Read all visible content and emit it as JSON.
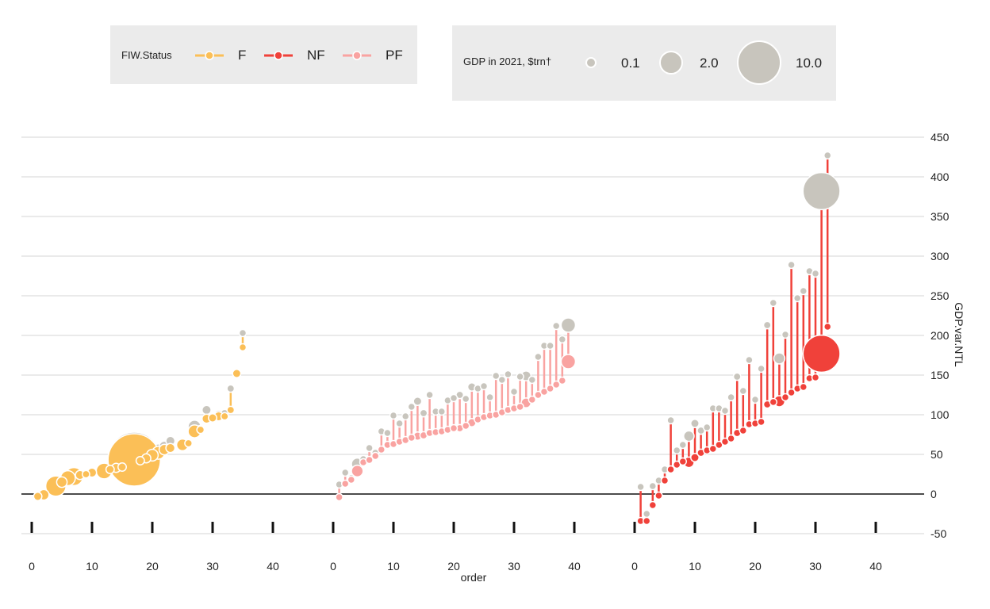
{
  "legend_status": {
    "title": "FIW.Status",
    "items": [
      {
        "label": "F",
        "color": "#fbbf57"
      },
      {
        "label": "NF",
        "color": "#f0413a"
      },
      {
        "label": "PF",
        "color": "#f9a3a1"
      }
    ]
  },
  "legend_gdp": {
    "title": "GDP in 2021, $trn†",
    "items": [
      {
        "label": "0.1",
        "value": 0.1
      },
      {
        "label": "2.0",
        "value": 2.0
      },
      {
        "label": "10.0",
        "value": 10.0
      }
    ],
    "color": "#c8c5bd"
  },
  "chart_data": {
    "type": "scatter",
    "subtype": "dumbbell (lollipop) with bubble sizes",
    "xlabel": "order",
    "ylabel": "GDP.var.NTL",
    "x_ticks": [
      "0",
      "10",
      "20",
      "30",
      "40"
    ],
    "ylim": [
      -55,
      455
    ],
    "y_ticks": [
      -50,
      0,
      50,
      100,
      150,
      200,
      250,
      300,
      350,
      400,
      450
    ],
    "y_axis_side": "right",
    "grid": true,
    "reference_line_y": 0,
    "point_color_gdp": "#c8c5bd",
    "panels": [
      {
        "status": "F",
        "color": "#fbbf57",
        "x_range": [
          0,
          45
        ],
        "points": [
          {
            "x": 1,
            "low": -3,
            "high": -3,
            "size": 0.25
          },
          {
            "x": 2,
            "low": -1,
            "high": -1,
            "size": 0.4
          },
          {
            "x": 4,
            "low": 10,
            "high": 10,
            "size": 1.5
          },
          {
            "x": 5,
            "low": 15,
            "high": 15,
            "size": 0.4
          },
          {
            "x": 6,
            "low": 20,
            "high": 20,
            "size": 0.8
          },
          {
            "x": 7,
            "low": 22,
            "high": 22,
            "size": 1.2
          },
          {
            "x": 8,
            "low": 24,
            "high": 25,
            "size": 0.3
          },
          {
            "x": 9,
            "low": 25,
            "high": 26,
            "size": 0.2
          },
          {
            "x": 10,
            "low": 27,
            "high": 28,
            "size": 0.3
          },
          {
            "x": 12,
            "low": 29,
            "high": 30,
            "size": 0.9
          },
          {
            "x": 13,
            "low": 31,
            "high": 32,
            "size": 0.25
          },
          {
            "x": 14,
            "low": 33,
            "high": 34,
            "size": 0.3
          },
          {
            "x": 15,
            "low": 34,
            "high": 35,
            "size": 0.25
          },
          {
            "x": 17,
            "low": 43,
            "high": 45,
            "size": 10.0
          },
          {
            "x": 18,
            "low": 42,
            "high": 45,
            "size": 0.25
          },
          {
            "x": 19,
            "low": 45,
            "high": 48,
            "size": 0.3
          },
          {
            "x": 20,
            "low": 49,
            "high": 52,
            "size": 0.5
          },
          {
            "x": 21,
            "low": 52,
            "high": 55,
            "size": 0.6
          },
          {
            "x": 22,
            "low": 56,
            "high": 60,
            "size": 0.4
          },
          {
            "x": 23,
            "low": 58,
            "high": 67,
            "size": 0.3
          },
          {
            "x": 25,
            "low": 62,
            "high": 63,
            "size": 0.5
          },
          {
            "x": 26,
            "low": 64,
            "high": 65,
            "size": 0.2
          },
          {
            "x": 27,
            "low": 79,
            "high": 85,
            "size": 0.6
          },
          {
            "x": 28,
            "low": 81,
            "high": 82,
            "size": 0.2
          },
          {
            "x": 29,
            "low": 95,
            "high": 106,
            "size": 0.3
          },
          {
            "x": 30,
            "low": 96,
            "high": 97,
            "size": 0.25
          },
          {
            "x": 31,
            "low": 98,
            "high": 100,
            "size": 0.3
          },
          {
            "x": 32,
            "low": 98,
            "high": 102,
            "size": 0.2
          },
          {
            "x": 33,
            "low": 106,
            "high": 133,
            "size": 0.2
          },
          {
            "x": 34,
            "low": 152,
            "high": 152,
            "size": 0.25
          },
          {
            "x": 35,
            "low": 185,
            "high": 203,
            "size": 0.1
          }
        ]
      },
      {
        "status": "PF",
        "color": "#f9a3a1",
        "x_range": [
          0,
          45
        ],
        "points": [
          {
            "x": 1,
            "low": -4,
            "high": 12,
            "size": 0.1
          },
          {
            "x": 2,
            "low": 13,
            "high": 27,
            "size": 0.15
          },
          {
            "x": 3,
            "low": 18,
            "high": 20,
            "size": 0.1
          },
          {
            "x": 4,
            "low": 29,
            "high": 38,
            "size": 0.5
          },
          {
            "x": 5,
            "low": 40,
            "high": 44,
            "size": 0.15
          },
          {
            "x": 6,
            "low": 43,
            "high": 58,
            "size": 0.15
          },
          {
            "x": 7,
            "low": 48,
            "high": 52,
            "size": 0.1
          },
          {
            "x": 8,
            "low": 56,
            "high": 79,
            "size": 0.1
          },
          {
            "x": 9,
            "low": 62,
            "high": 77,
            "size": 0.15
          },
          {
            "x": 10,
            "low": 63,
            "high": 99,
            "size": 0.15
          },
          {
            "x": 11,
            "low": 66,
            "high": 89,
            "size": 0.15
          },
          {
            "x": 12,
            "low": 68,
            "high": 98,
            "size": 0.15
          },
          {
            "x": 13,
            "low": 71,
            "high": 110,
            "size": 0.1
          },
          {
            "x": 14,
            "low": 73,
            "high": 117,
            "size": 0.25
          },
          {
            "x": 15,
            "low": 74,
            "high": 102,
            "size": 0.2
          },
          {
            "x": 16,
            "low": 77,
            "high": 125,
            "size": 0.15
          },
          {
            "x": 17,
            "low": 78,
            "high": 104,
            "size": 0.15
          },
          {
            "x": 18,
            "low": 79,
            "high": 104,
            "size": 0.1
          },
          {
            "x": 19,
            "low": 81,
            "high": 118,
            "size": 0.15
          },
          {
            "x": 20,
            "low": 83,
            "high": 121,
            "size": 0.15
          },
          {
            "x": 21,
            "low": 83,
            "high": 125,
            "size": 0.2
          },
          {
            "x": 22,
            "low": 86,
            "high": 120,
            "size": 0.15
          },
          {
            "x": 23,
            "low": 90,
            "high": 135,
            "size": 0.25
          },
          {
            "x": 24,
            "low": 94,
            "high": 133,
            "size": 0.1
          },
          {
            "x": 25,
            "low": 97,
            "high": 136,
            "size": 0.15
          },
          {
            "x": 26,
            "low": 99,
            "high": 122,
            "size": 0.1
          },
          {
            "x": 27,
            "low": 100,
            "high": 149,
            "size": 0.1
          },
          {
            "x": 28,
            "low": 103,
            "high": 144,
            "size": 0.1
          },
          {
            "x": 29,
            "low": 106,
            "high": 151,
            "size": 0.1
          },
          {
            "x": 30,
            "low": 108,
            "high": 129,
            "size": 0.1
          },
          {
            "x": 31,
            "low": 110,
            "high": 148,
            "size": 0.1
          },
          {
            "x": 32,
            "low": 115,
            "high": 149,
            "size": 0.35
          },
          {
            "x": 33,
            "low": 119,
            "high": 144,
            "size": 0.15
          },
          {
            "x": 34,
            "low": 125,
            "high": 173,
            "size": 0.1
          },
          {
            "x": 35,
            "low": 129,
            "high": 187,
            "size": 0.1
          },
          {
            "x": 36,
            "low": 133,
            "high": 187,
            "size": 0.1
          },
          {
            "x": 37,
            "low": 138,
            "high": 212,
            "size": 0.15
          },
          {
            "x": 38,
            "low": 143,
            "high": 195,
            "size": 0.15
          },
          {
            "x": 39,
            "low": 167,
            "high": 213,
            "size": 0.75
          }
        ]
      },
      {
        "status": "NF",
        "color": "#f0413a",
        "x_range": [
          0,
          45
        ],
        "points": [
          {
            "x": 1,
            "low": -34,
            "high": 9,
            "size": 0.1
          },
          {
            "x": 2,
            "low": -34,
            "high": -25,
            "size": 0.1
          },
          {
            "x": 3,
            "low": -14,
            "high": 10,
            "size": 0.1
          },
          {
            "x": 4,
            "low": -2,
            "high": 17,
            "size": 0.15
          },
          {
            "x": 5,
            "low": 17,
            "high": 31,
            "size": 0.1
          },
          {
            "x": 6,
            "low": 31,
            "high": 93,
            "size": 0.15
          },
          {
            "x": 7,
            "low": 37,
            "high": 55,
            "size": 0.1
          },
          {
            "x": 8,
            "low": 41,
            "high": 62,
            "size": 0.15
          },
          {
            "x": 9,
            "low": 40,
            "high": 73,
            "size": 0.4
          },
          {
            "x": 10,
            "low": 46,
            "high": 89,
            "size": 0.25
          },
          {
            "x": 11,
            "low": 52,
            "high": 80,
            "size": 0.2
          },
          {
            "x": 12,
            "low": 55,
            "high": 84,
            "size": 0.1
          },
          {
            "x": 13,
            "low": 57,
            "high": 108,
            "size": 0.1
          },
          {
            "x": 14,
            "low": 62,
            "high": 108,
            "size": 0.1
          },
          {
            "x": 15,
            "low": 66,
            "high": 105,
            "size": 0.1
          },
          {
            "x": 16,
            "low": 70,
            "high": 122,
            "size": 0.15
          },
          {
            "x": 17,
            "low": 77,
            "high": 148,
            "size": 0.2
          },
          {
            "x": 18,
            "low": 80,
            "high": 130,
            "size": 0.1
          },
          {
            "x": 19,
            "low": 88,
            "high": 169,
            "size": 0.1
          },
          {
            "x": 20,
            "low": 89,
            "high": 119,
            "size": 0.1
          },
          {
            "x": 21,
            "low": 91,
            "high": 158,
            "size": 0.15
          },
          {
            "x": 22,
            "low": 113,
            "high": 213,
            "size": 0.2
          },
          {
            "x": 23,
            "low": 116,
            "high": 241,
            "size": 0.15
          },
          {
            "x": 24,
            "low": 117,
            "high": 171,
            "size": 0.45
          },
          {
            "x": 25,
            "low": 122,
            "high": 201,
            "size": 0.1
          },
          {
            "x": 26,
            "low": 128,
            "high": 289,
            "size": 0.1
          },
          {
            "x": 27,
            "low": 133,
            "high": 247,
            "size": 0.1
          },
          {
            "x": 28,
            "low": 135,
            "high": 256,
            "size": 0.1
          },
          {
            "x": 29,
            "low": 146,
            "high": 281,
            "size": 0.1
          },
          {
            "x": 30,
            "low": 147,
            "high": 278,
            "size": 0.15
          },
          {
            "x": 31,
            "low": 177,
            "high": 382,
            "size": 5.0
          },
          {
            "x": 32,
            "low": 211,
            "high": 427,
            "size": 0.15
          }
        ]
      }
    ]
  }
}
